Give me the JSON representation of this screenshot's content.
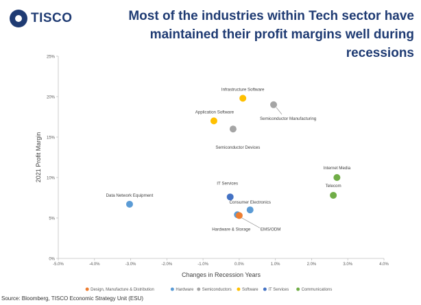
{
  "header": {
    "logo_text": "TISCO",
    "title": "Most of the industries within Tech sector have maintained their profit margins well during recessions"
  },
  "source": "Source: Bloomberg, TISCO Economic Strategy Unit (ESU)",
  "chart_data": {
    "type": "scatter",
    "title": "Most of the industries within Tech sector have maintained their profit margins well during recessions",
    "xlabel": "Changes in Recession Years",
    "ylabel": "2021 Profit Margin",
    "xlim": [
      -0.05,
      0.04
    ],
    "ylim": [
      0,
      0.25
    ],
    "x_ticks": [
      -0.05,
      -0.04,
      -0.03,
      -0.02,
      -0.01,
      0,
      0.01,
      0.02,
      0.03,
      0.04
    ],
    "x_tick_labels": [
      "-5.0%",
      "-4.0%",
      "-3.0%",
      "-2.0%",
      "-1.0%",
      "0.0%",
      "1.0%",
      "2.0%",
      "3.0%",
      "4.0%"
    ],
    "y_ticks": [
      0,
      0.05,
      0.1,
      0.15,
      0.2,
      0.25
    ],
    "y_tick_labels": [
      "0%",
      "5%",
      "10%",
      "15%",
      "20%",
      "25%"
    ],
    "legend_position": "bottom",
    "series": [
      {
        "name": "Design, Manufacture & Distribution",
        "color": "#ed7d31"
      },
      {
        "name": "Hardware",
        "color": "#5b9bd5"
      },
      {
        "name": "Semiconductors",
        "color": "#a5a5a5"
      },
      {
        "name": "Software",
        "color": "#ffc000"
      },
      {
        "name": "IT Services",
        "color": "#4472c4"
      },
      {
        "name": "Communications",
        "color": "#70ad47"
      }
    ],
    "points": [
      {
        "label": "Infrastructure Software",
        "series": "Software",
        "x": 0.001,
        "y": 0.198
      },
      {
        "label": "Application Software",
        "series": "Software",
        "x": -0.007,
        "y": 0.17
      },
      {
        "label": "Semiconductor Manufacturing",
        "series": "Semiconductors",
        "x": 0.0095,
        "y": 0.19
      },
      {
        "label": "Semiconductor Devices",
        "series": "Semiconductors",
        "x": -0.0017,
        "y": 0.16
      },
      {
        "label": "Data Network Equipment",
        "series": "Hardware",
        "x": -0.0303,
        "y": 0.067
      },
      {
        "label": "IT Services",
        "series": "IT Services",
        "x": -0.0025,
        "y": 0.076
      },
      {
        "label": "Consumer Electronics",
        "series": "Hardware",
        "x": 0.003,
        "y": 0.06
      },
      {
        "label": "Hardware & Storage",
        "series": "Hardware",
        "x": -0.0005,
        "y": 0.054
      },
      {
        "label": "EMS/ODM",
        "series": "Design, Manufacture & Distribution",
        "x": 0.0,
        "y": 0.053
      },
      {
        "label": "Internet Media",
        "series": "Communications",
        "x": 0.027,
        "y": 0.1
      },
      {
        "label": "Telecom",
        "series": "Communications",
        "x": 0.026,
        "y": 0.078
      }
    ]
  }
}
